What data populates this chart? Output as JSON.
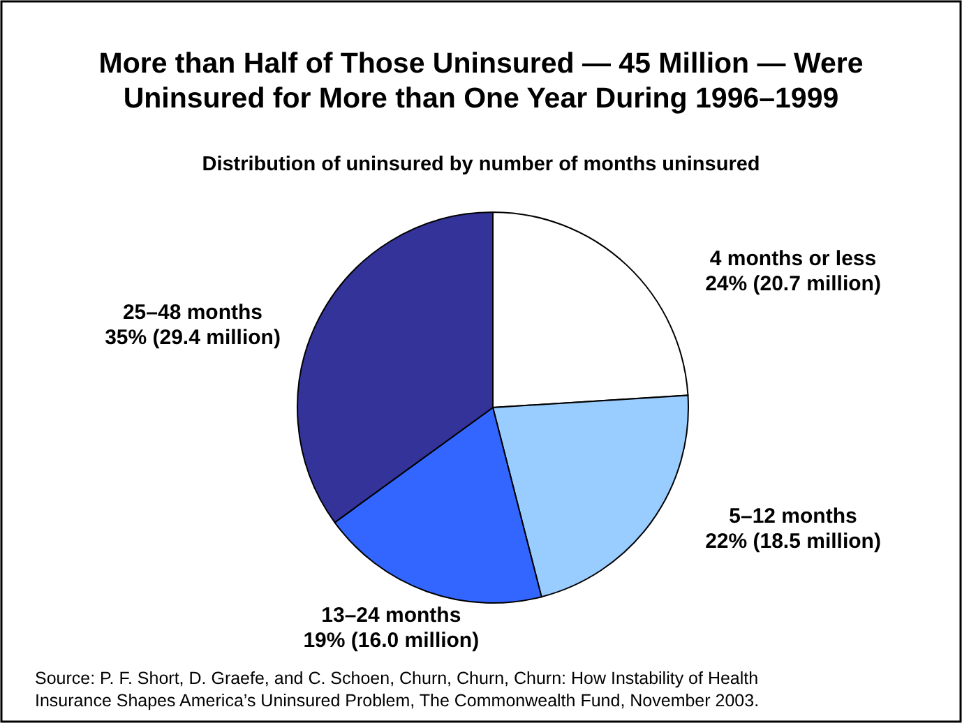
{
  "chart_data": {
    "type": "pie",
    "title": "More than Half of Those Uninsured — 45 Million — Were Uninsured for More than One Year During 1996–1999",
    "subtitle": "Distribution of uninsured by number of months uninsured",
    "categories": [
      "4 months or less",
      "5–12 months",
      "13–24 months",
      "25–48 months"
    ],
    "values": [
      24,
      22,
      19,
      35
    ],
    "value_labels": [
      "24% (20.7 million)",
      "22% (18.5 million)",
      "19% (16.0 million)",
      "35% (29.4 million)"
    ],
    "colors": [
      "#ffffff",
      "#99ccff",
      "#3366ff",
      "#333399"
    ],
    "legend": false,
    "annotations": [
      "Source: P. F. Short, D. Graefe, and C. Schoen, Churn, Churn, Churn: How Instability of Health",
      "Insurance Shapes America’s Uninsured Problem, The Commonwealth Fund, November 2003."
    ]
  }
}
